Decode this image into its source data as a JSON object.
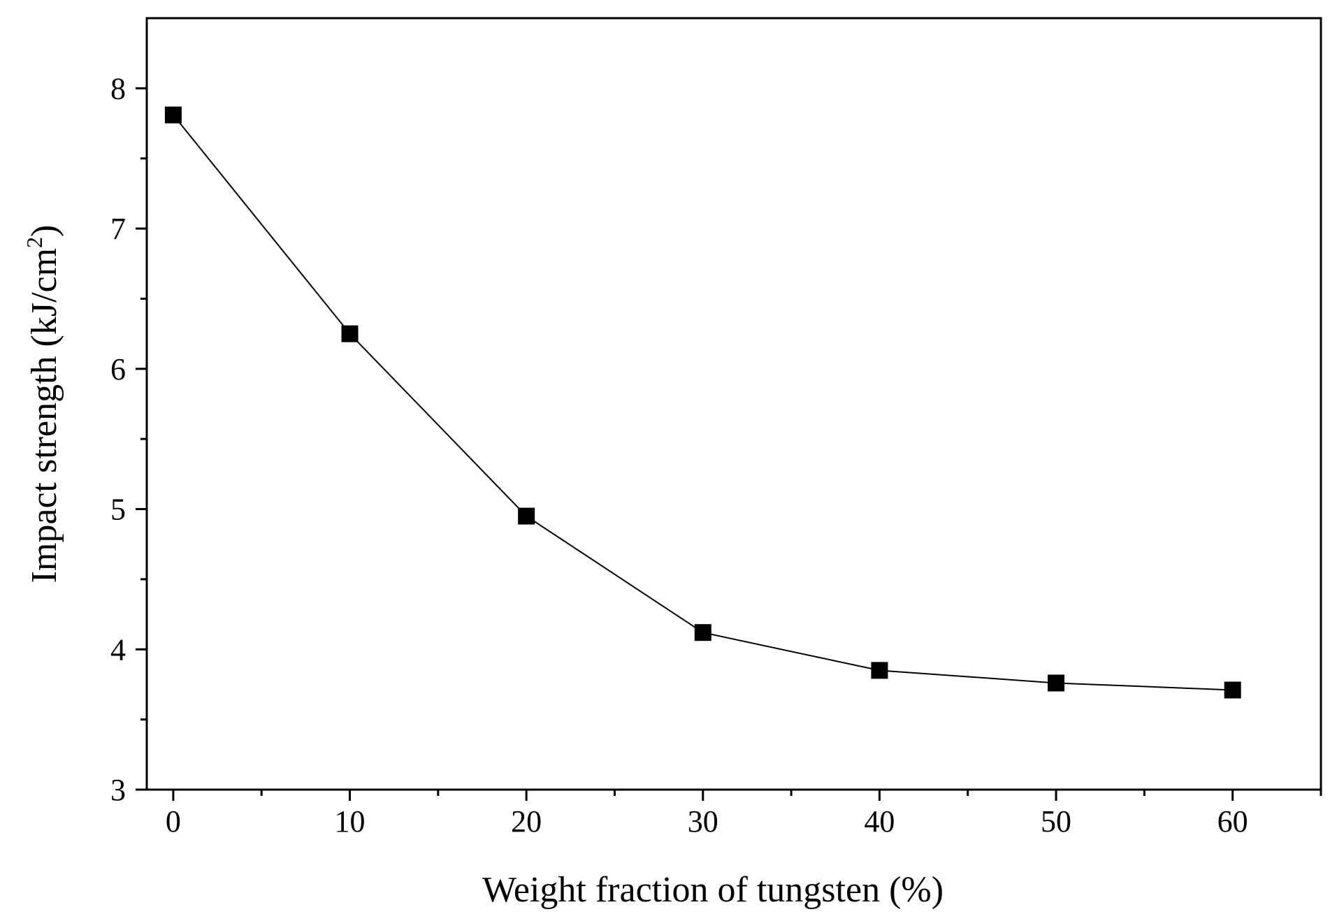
{
  "chart_data": {
    "type": "line",
    "title": "",
    "xlabel": "Weight fraction of tungsten (%)",
    "ylabel_main": "Impact strength (kJ/cm",
    "ylabel_sup": "2",
    "ylabel_end": ")",
    "xlim": [
      -1.5,
      65
    ],
    "ylim": [
      3,
      8.5
    ],
    "x_ticks": [
      0,
      10,
      20,
      30,
      40,
      50,
      60
    ],
    "x_minor_ticks": [
      5,
      15,
      25,
      35,
      45,
      55,
      65
    ],
    "y_ticks": [
      3,
      4,
      5,
      6,
      7,
      8
    ],
    "y_minor_ticks": [
      3.5,
      4.5,
      5.5,
      6.5,
      7.5
    ],
    "grid": false,
    "legend": "none",
    "series": [
      {
        "name": "Impact strength",
        "marker": "square",
        "color": "#000000",
        "x": [
          0,
          10,
          20,
          30,
          40,
          50,
          60
        ],
        "y": [
          7.81,
          6.25,
          4.95,
          4.12,
          3.85,
          3.76,
          3.71
        ]
      }
    ]
  }
}
